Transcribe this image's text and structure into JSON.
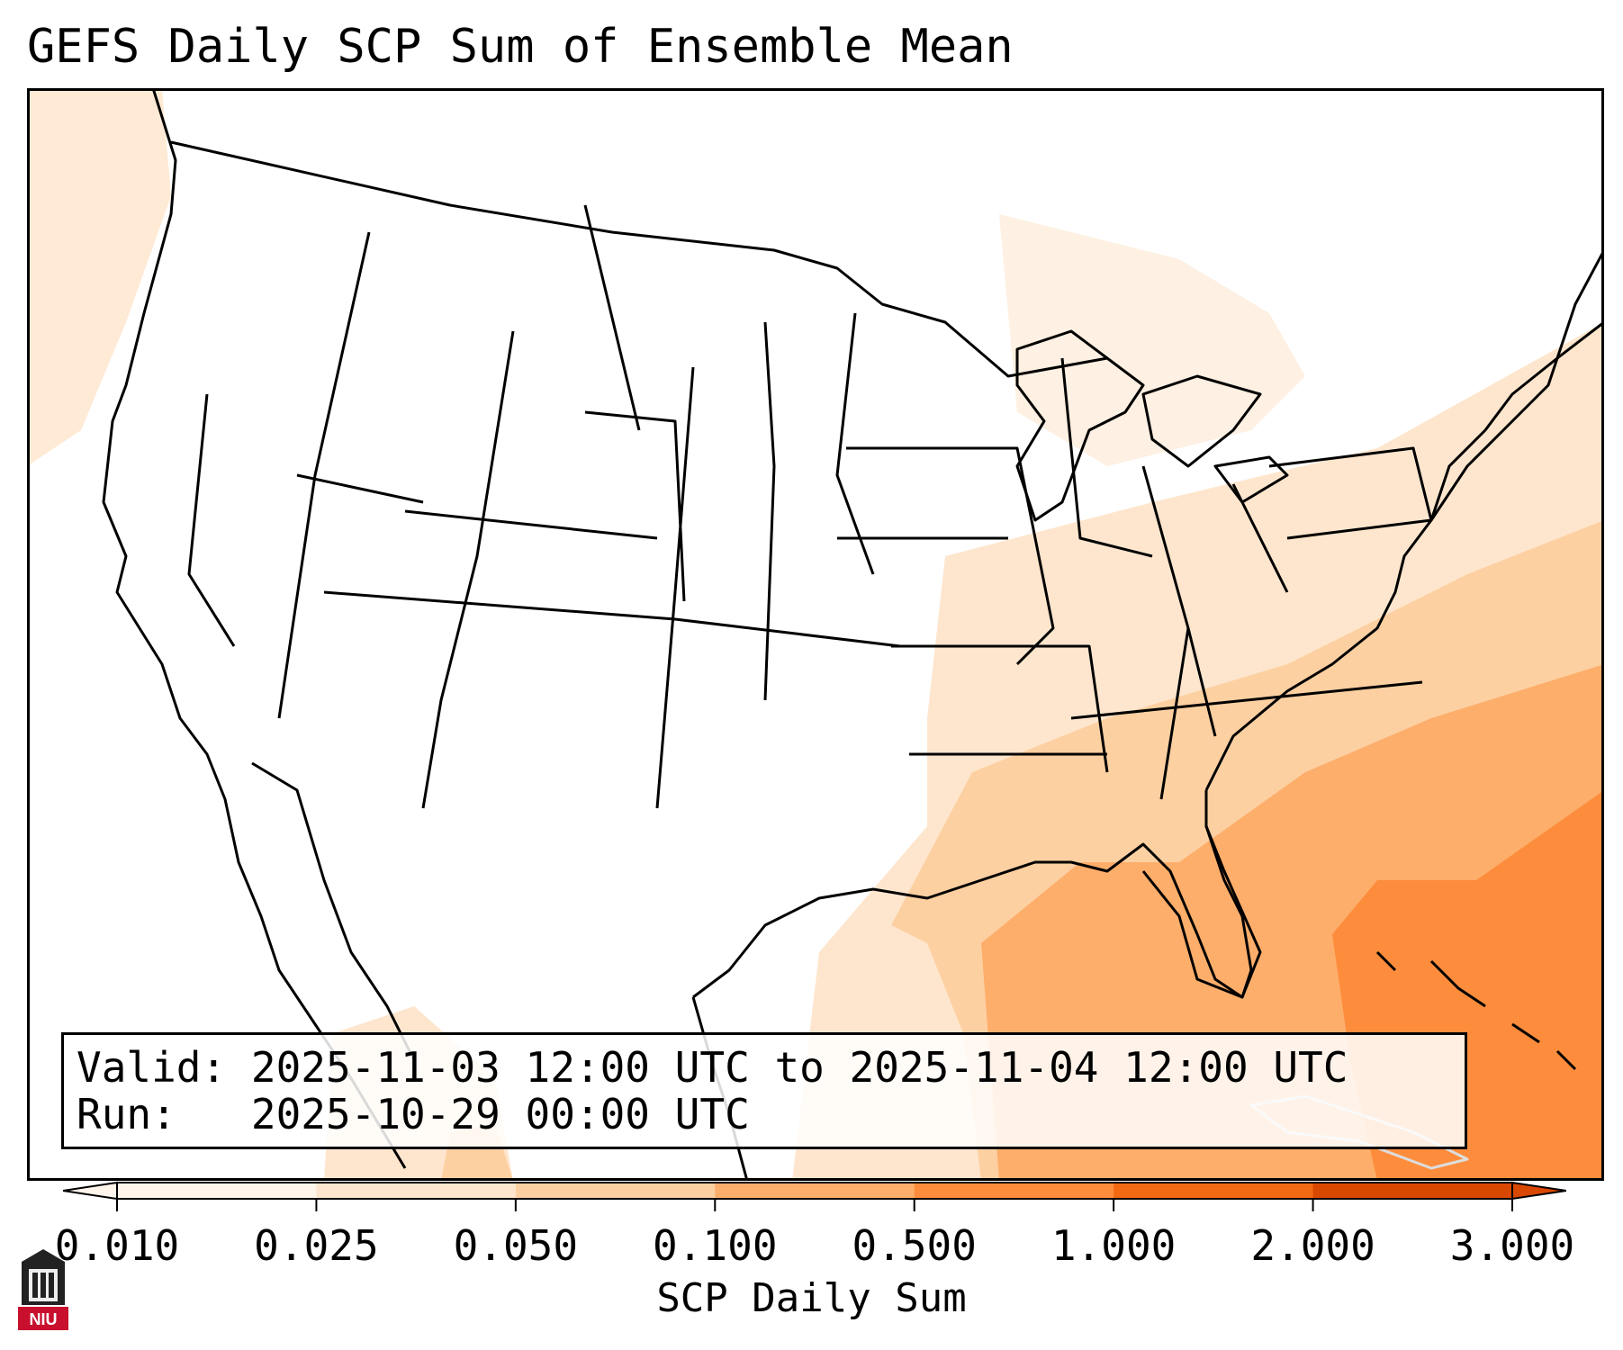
{
  "title": "GEFS Daily SCP Sum of Ensemble Mean",
  "info": {
    "valid_label": "Valid:",
    "valid_value": "2025-11-03 12:00 UTC to 2025-11-04 12:00 UTC",
    "run_label": "Run:",
    "run_value": "2025-10-29 00:00 UTC"
  },
  "colorbar": {
    "label": "SCP Daily Sum",
    "ticks": [
      "0.010",
      "0.025",
      "0.050",
      "0.100",
      "0.500",
      "1.000",
      "2.000",
      "3.000"
    ],
    "colors": [
      "#fff5eb",
      "#fee6ce",
      "#fdd0a2",
      "#fdae6b",
      "#fd8d3c",
      "#f16913",
      "#d94801"
    ],
    "extend": "both"
  },
  "logo": {
    "text": "NIU"
  },
  "colors": {
    "lightest": "#fff5eb",
    "light": "#fee6ce",
    "pale": "#fdd0a2",
    "medium": "#fdae6b",
    "orange": "#fd8d3c"
  }
}
